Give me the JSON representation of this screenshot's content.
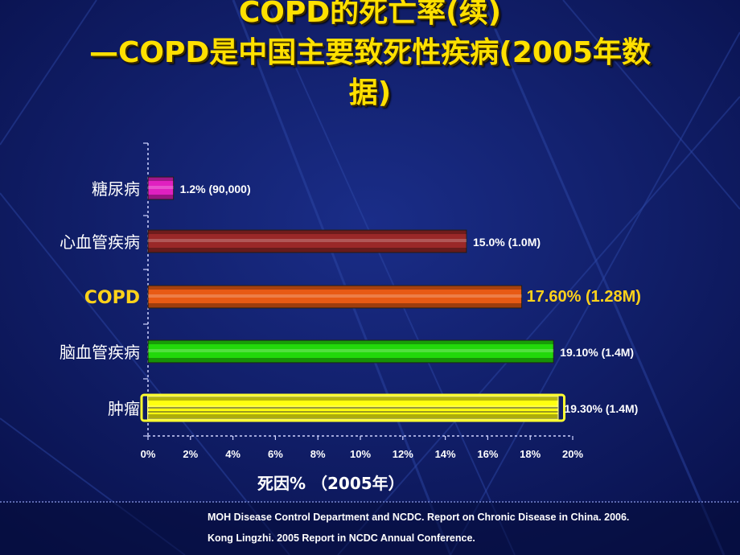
{
  "slide": {
    "title_line1": "COPD的死亡率(续)",
    "title_line2": "—COPD是中国主要致死性疾病(2005年数",
    "title_line3": "据)",
    "footer_line1": "MOH Disease Control Department and NCDC. Report on Chronic Disease in China. 2006.",
    "footer_line2": "Kong Lingzhi. 2005 Report in NCDC Annual Conference."
  },
  "chart_data": {
    "type": "bar",
    "orientation": "horizontal",
    "xlabel": "死因%  （2005年）",
    "xlim": [
      0,
      20
    ],
    "xticks": [
      "0%",
      "2%",
      "4%",
      "6%",
      "8%",
      "10%",
      "12%",
      "14%",
      "16%",
      "18%",
      "20%"
    ],
    "categories": [
      "糖尿病",
      "心血管疾病",
      "COPD",
      "脑血管疾病",
      "肿瘤"
    ],
    "values": [
      1.2,
      15.0,
      17.6,
      19.1,
      19.3
    ],
    "data_labels": [
      "1.2% (90,000)",
      "15.0% (1.0M)",
      "17.60% (1.28M)",
      "19.10% (1.4M)",
      "19.30% (1.4M)"
    ],
    "colors": [
      "#E020C0",
      "#9A2828",
      "#E85A14",
      "#22D80A",
      "#FFFF10"
    ],
    "highlight_category": "COPD",
    "highlight_color": "#FFD21A"
  }
}
